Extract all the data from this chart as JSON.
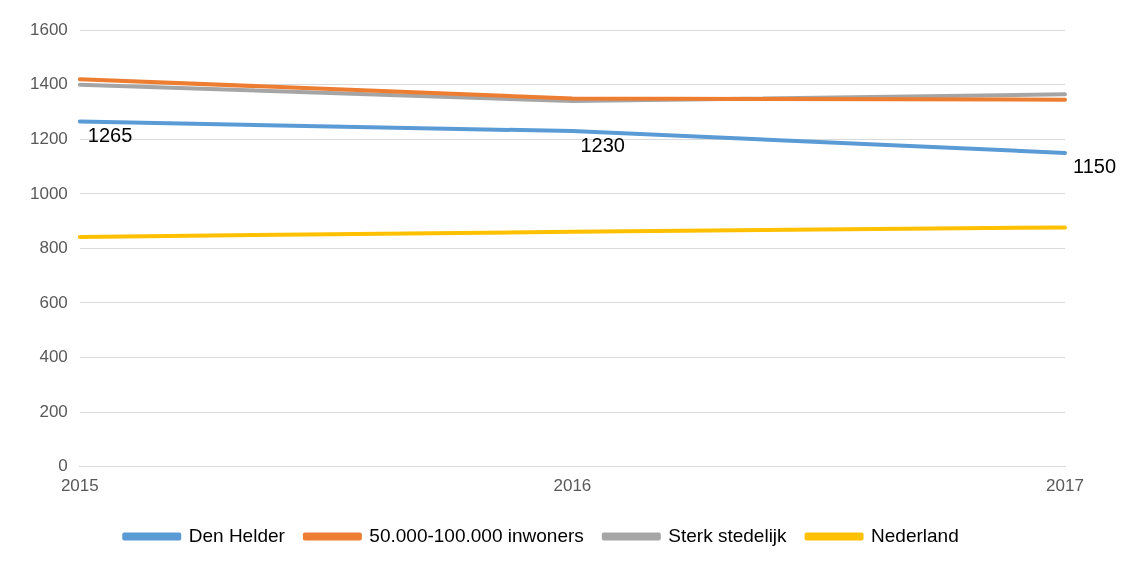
{
  "chart_data": {
    "type": "line",
    "categories": [
      "2015",
      "2016",
      "2017"
    ],
    "series": [
      {
        "name": "Den Helder",
        "color": "#5b9bd5",
        "values": [
          1265,
          1230,
          1150
        ],
        "value_labels": [
          "1265",
          "1230",
          "1150"
        ]
      },
      {
        "name": "50.000-100.000 inwoners",
        "color": "#ed7d31",
        "values": [
          1420,
          1350,
          1345
        ]
      },
      {
        "name": "Sterk stedelijk",
        "color": "#a5a5a5",
        "values": [
          1400,
          1340,
          1365
        ]
      },
      {
        "name": "Nederland",
        "color": "#ffc000",
        "values": [
          842,
          861,
          877
        ]
      }
    ],
    "ylim": [
      0,
      1600
    ],
    "yticks": [
      0,
      200,
      400,
      600,
      800,
      1000,
      1200,
      1400,
      1600
    ],
    "grid": "y",
    "legend": "bottom",
    "marker": "none",
    "line_style": "solid"
  }
}
